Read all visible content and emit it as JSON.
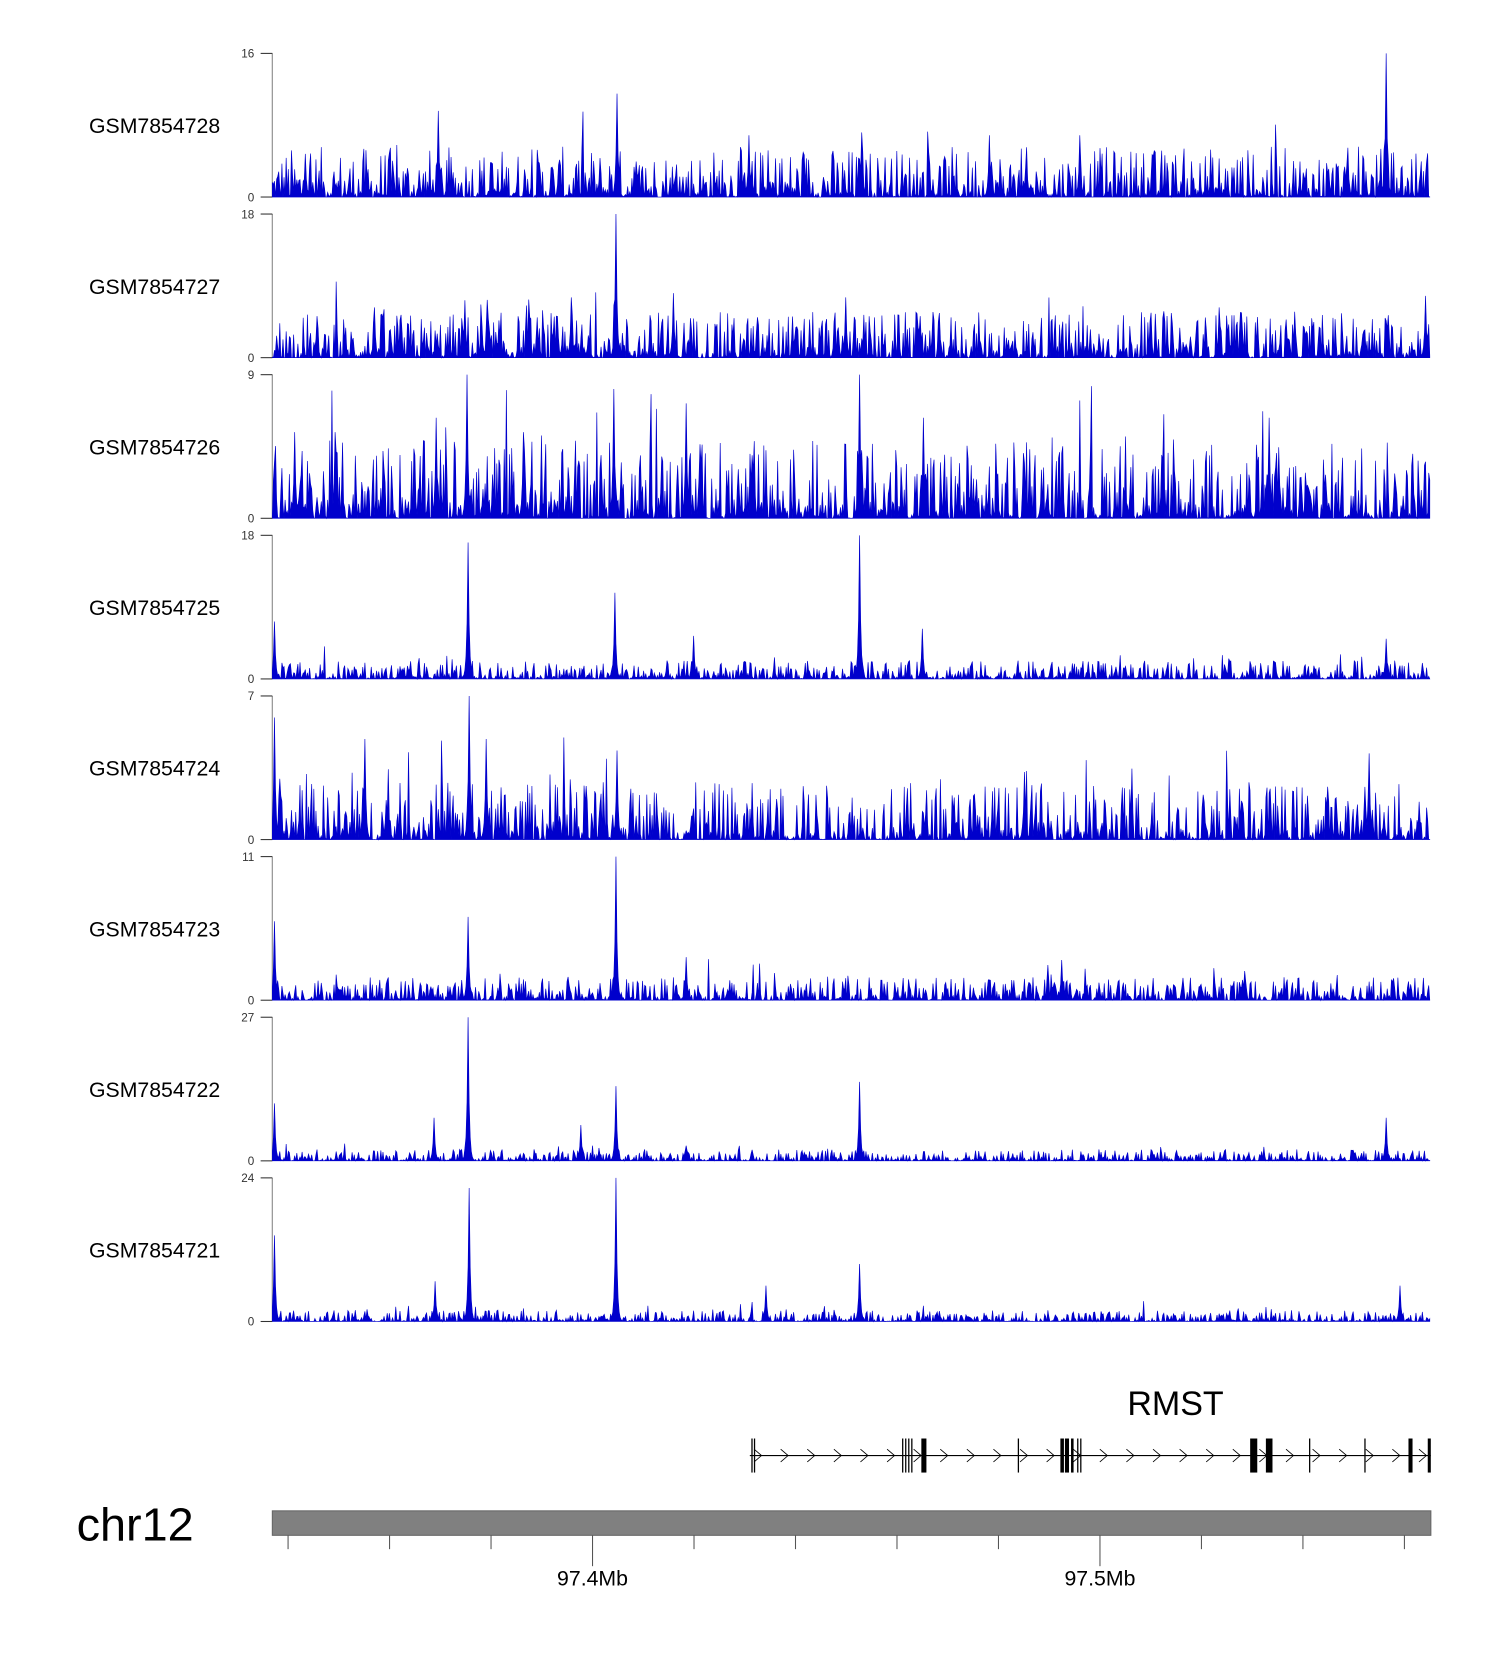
{
  "chart_data": {
    "type": "area",
    "title": "",
    "chromosome": "chr12",
    "xlim_mb": [
      97.3369,
      97.565
    ],
    "x_tick_labels": [
      {
        "mb": 97.4,
        "label": "97.4Mb"
      },
      {
        "mb": 97.5,
        "label": "97.5Mb"
      }
    ],
    "minor_tick_step_mb": 0.02,
    "signal_color": "#0000cc",
    "tracks": [
      {
        "name": "GSM7854728",
        "ymax": 16,
        "ymin": 0,
        "noise": 0.22,
        "peaks": [
          [
            97.5564,
            1.0
          ],
          [
            97.4048,
            0.72
          ],
          [
            97.3696,
            0.6
          ],
          [
            97.453,
            0.45
          ],
          [
            97.4782,
            0.43
          ],
          [
            97.496,
            0.43
          ],
          [
            97.4308,
            0.43
          ],
          [
            97.3434,
            0.3
          ]
        ]
      },
      {
        "name": "GSM7854727",
        "ymax": 18,
        "ymin": 0,
        "noise": 0.2,
        "peaks": [
          [
            97.4046,
            1.0
          ],
          [
            97.4159,
            0.45
          ],
          [
            97.3958,
            0.42
          ],
          [
            97.4499,
            0.42
          ],
          [
            97.3748,
            0.4
          ],
          [
            97.5235,
            0.35
          ],
          [
            97.5642,
            0.43
          ],
          [
            97.357,
            0.35
          ]
        ]
      },
      {
        "name": "GSM7854726",
        "ymax": 9,
        "ymin": 0,
        "noise": 0.34,
        "peaks": [
          [
            97.3753,
            1.0
          ],
          [
            97.4526,
            1.0
          ],
          [
            97.4042,
            0.9
          ],
          [
            97.4184,
            0.8
          ],
          [
            97.5333,
            0.7
          ],
          [
            97.3692,
            0.7
          ],
          [
            97.4652,
            0.7
          ],
          [
            97.3413,
            0.6
          ],
          [
            97.3493,
            0.6
          ],
          [
            97.3864,
            0.6
          ]
        ]
      },
      {
        "name": "GSM7854725",
        "ymax": 18,
        "ymin": 0,
        "noise": 0.08,
        "peaks": [
          [
            97.3755,
            0.95
          ],
          [
            97.4526,
            1.0
          ],
          [
            97.4044,
            0.6
          ],
          [
            97.3373,
            0.4
          ],
          [
            97.465,
            0.35
          ],
          [
            97.4199,
            0.3
          ],
          [
            97.5564,
            0.28
          ]
        ]
      },
      {
        "name": "GSM7854724",
        "ymax": 7,
        "ymin": 0,
        "noise": 0.25,
        "peaks": [
          [
            97.3757,
            1.0
          ],
          [
            97.3373,
            0.85
          ],
          [
            97.3551,
            0.7
          ],
          [
            97.379,
            0.7
          ],
          [
            97.4048,
            0.62
          ],
          [
            97.553,
            0.6
          ],
          [
            97.4851,
            0.47
          ]
        ]
      },
      {
        "name": "GSM7854723",
        "ymax": 11,
        "ymin": 0,
        "noise": 0.1,
        "peaks": [
          [
            97.4046,
            1.0
          ],
          [
            97.3755,
            0.58
          ],
          [
            97.3373,
            0.55
          ],
          [
            97.4184,
            0.3
          ],
          [
            97.4925,
            0.28
          ]
        ]
      },
      {
        "name": "GSM7854722",
        "ymax": 27,
        "ymin": 0,
        "noise": 0.05,
        "peaks": [
          [
            97.3755,
            1.0
          ],
          [
            97.3373,
            0.4
          ],
          [
            97.4046,
            0.52
          ],
          [
            97.4526,
            0.55
          ],
          [
            97.3977,
            0.25
          ],
          [
            97.3688,
            0.3
          ],
          [
            97.5564,
            0.3
          ]
        ]
      },
      {
        "name": "GSM7854721",
        "ymax": 24,
        "ymin": 0,
        "noise": 0.05,
        "peaks": [
          [
            97.4046,
            1.0
          ],
          [
            97.3757,
            0.93
          ],
          [
            97.3373,
            0.6
          ],
          [
            97.4526,
            0.4
          ],
          [
            97.4342,
            0.25
          ],
          [
            97.369,
            0.28
          ],
          [
            97.5591,
            0.25
          ]
        ]
      }
    ],
    "gene": {
      "name": "RMST",
      "strand": "+",
      "start_mb": 97.431,
      "end_mb": 97.5652,
      "exons_mb": [
        [
          97.4313,
          97.4315
        ],
        [
          97.4318,
          97.432
        ],
        [
          97.461,
          97.4612
        ],
        [
          97.4616,
          97.4618
        ],
        [
          97.4622,
          97.4624
        ],
        [
          97.4628,
          97.463
        ],
        [
          97.4648,
          97.4658
        ],
        [
          97.4838,
          97.484
        ],
        [
          97.4922,
          97.4929
        ],
        [
          97.4931,
          97.4939
        ],
        [
          97.4943,
          97.4948
        ],
        [
          97.4955,
          97.4957
        ],
        [
          97.4961,
          97.4963
        ],
        [
          97.5296,
          97.531
        ],
        [
          97.5327,
          97.534
        ],
        [
          97.5412,
          97.5414
        ],
        [
          97.5521,
          97.5523
        ],
        [
          97.5608,
          97.5616
        ],
        [
          97.5646,
          97.5652
        ]
      ]
    }
  }
}
